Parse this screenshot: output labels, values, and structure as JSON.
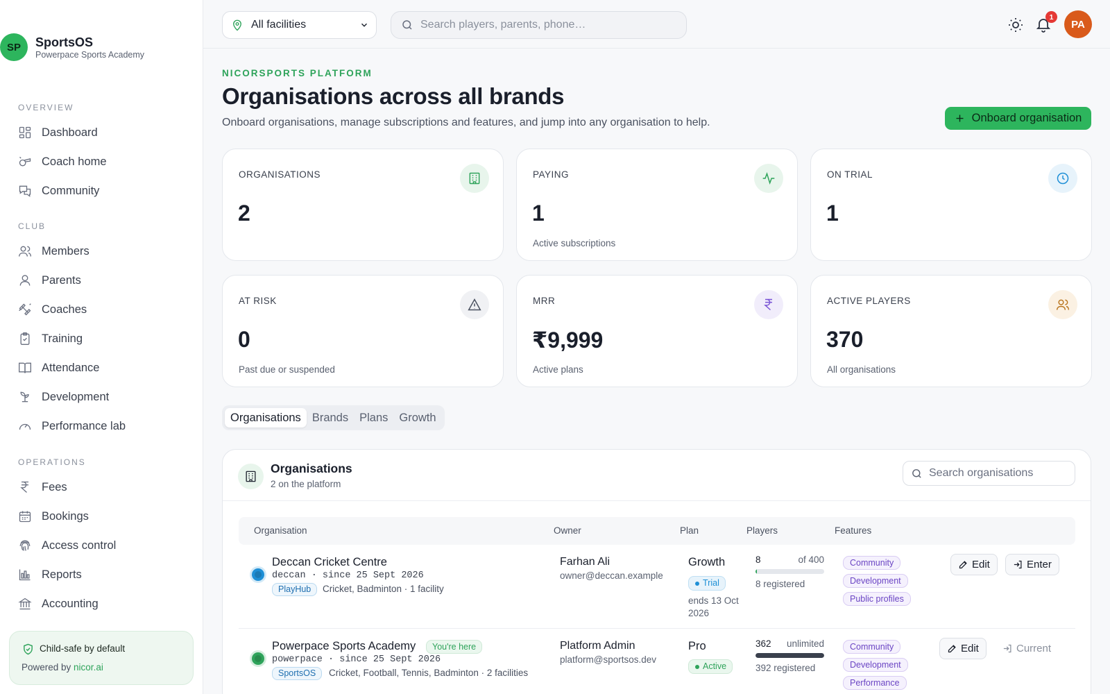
{
  "app": {
    "logo_initials": "SP",
    "name": "SportsOS",
    "org": "Powerpace Sports Academy"
  },
  "sidebar": {
    "sections": [
      {
        "title": "OVERVIEW",
        "items": [
          {
            "label": "Dashboard",
            "icon": "dashboard-icon"
          },
          {
            "label": "Coach home",
            "icon": "whistle-icon"
          },
          {
            "label": "Community",
            "icon": "chat-icon"
          }
        ]
      },
      {
        "title": "CLUB",
        "items": [
          {
            "label": "Members",
            "icon": "users-icon"
          },
          {
            "label": "Parents",
            "icon": "user-icon"
          },
          {
            "label": "Coaches",
            "icon": "dumbbell-icon"
          },
          {
            "label": "Training",
            "icon": "clipboard-icon"
          },
          {
            "label": "Attendance",
            "icon": "book-icon"
          },
          {
            "label": "Development",
            "icon": "sprout-icon"
          },
          {
            "label": "Performance lab",
            "icon": "gauge-icon"
          }
        ]
      },
      {
        "title": "OPERATIONS",
        "items": [
          {
            "label": "Fees",
            "icon": "rupee-icon"
          },
          {
            "label": "Bookings",
            "icon": "calendar-icon"
          },
          {
            "label": "Access control",
            "icon": "fingerprint-icon"
          },
          {
            "label": "Reports",
            "icon": "bar-chart-icon"
          },
          {
            "label": "Accounting",
            "icon": "bank-icon"
          }
        ]
      }
    ],
    "footer": {
      "title": "Child-safe by default",
      "powered_prefix": "Powered by ",
      "powered_link": "nicor.ai"
    }
  },
  "topbar": {
    "facility": "All facilities",
    "search_placeholder": "Search players, parents, phone…",
    "notification_count": "1",
    "avatar_initials": "PA"
  },
  "header": {
    "eyebrow": "NICORSPORTS PLATFORM",
    "title": "Organisations across all brands",
    "subtitle": "Onboard organisations, manage subscriptions and features, and jump into any organisation to help.",
    "primary_action": "Onboard organisation"
  },
  "stats": [
    {
      "label": "ORGANISATIONS",
      "value": "2",
      "note": "",
      "icon": "building-icon",
      "accent": "#2ea35a",
      "tint": "#e8f5ec"
    },
    {
      "label": "PAYING",
      "value": "1",
      "note": "Active subscriptions",
      "icon": "pulse-icon",
      "accent": "#2ea35a",
      "tint": "#e8f5ec"
    },
    {
      "label": "ON TRIAL",
      "value": "1",
      "note": "",
      "icon": "clock-icon",
      "accent": "#1e8fd6",
      "tint": "#e7f3fb"
    },
    {
      "label": "AT RISK",
      "value": "0",
      "note": "Past due or suspended",
      "icon": "warning-icon",
      "accent": "#4a5160",
      "tint": "#f0f1f4"
    },
    {
      "label": "MRR",
      "value": "₹9,999",
      "note": "Active plans",
      "icon": "rupee-icon",
      "accent": "#7a55d6",
      "tint": "#f1edfb"
    },
    {
      "label": "ACTIVE PLAYERS",
      "value": "370",
      "note": "All organisations",
      "icon": "users-icon",
      "accent": "#b8731b",
      "tint": "#fbf1e3"
    }
  ],
  "tabs": [
    "Organisations",
    "Brands",
    "Plans",
    "Growth"
  ],
  "organisations": {
    "title": "Organisations",
    "subtitle": "2 on the platform",
    "search_placeholder": "Search organisations",
    "columns": [
      "Organisation",
      "Owner",
      "Plan",
      "Players",
      "Features"
    ],
    "rows": [
      {
        "name": "Deccan Cricket Centre",
        "slug": "deccan · since 25 Sept 2026",
        "brand": "PlayHub",
        "meta": "Cricket, Badminton · 1 facility",
        "here": "",
        "status_color": "#1e8fd6",
        "owner": "Farhan Ali",
        "email": "owner@deccan.example",
        "plan": "Growth",
        "plan_status": "Trial",
        "plan_color": "#1e8fd6",
        "plan_bg": "#e7f3fb",
        "plan_border": "#bfdff3",
        "plan_ends": "ends 13 Oct 2026",
        "players": "8",
        "cap": "of 400",
        "fill": 0.02,
        "fill_color": "#2ea35a",
        "registered": "8 registered",
        "features": [
          "Community",
          "Development",
          "Public profiles"
        ],
        "actions": [
          "Edit",
          "Enter"
        ]
      },
      {
        "name": "Powerpace Sports Academy",
        "slug": "powerpace · since 25 Sept 2026",
        "brand": "SportsOS",
        "meta": "Cricket, Football, Tennis, Badminton · 2 facilities",
        "here": "You're here",
        "status_color": "#2ea35a",
        "owner": "Platform Admin",
        "email": "platform@sportsos.dev",
        "plan": "Pro",
        "plan_status": "Active",
        "plan_color": "#2ea35a",
        "plan_bg": "#eaf7ee",
        "plan_border": "#cfe9d7",
        "plan_ends": "",
        "players": "362",
        "cap": "unlimited",
        "fill": 1,
        "fill_color": "#3a404d",
        "registered": "392 registered",
        "features": [
          "Community",
          "Development",
          "Performance"
        ],
        "actions": [
          "Edit",
          "Current"
        ]
      }
    ]
  }
}
